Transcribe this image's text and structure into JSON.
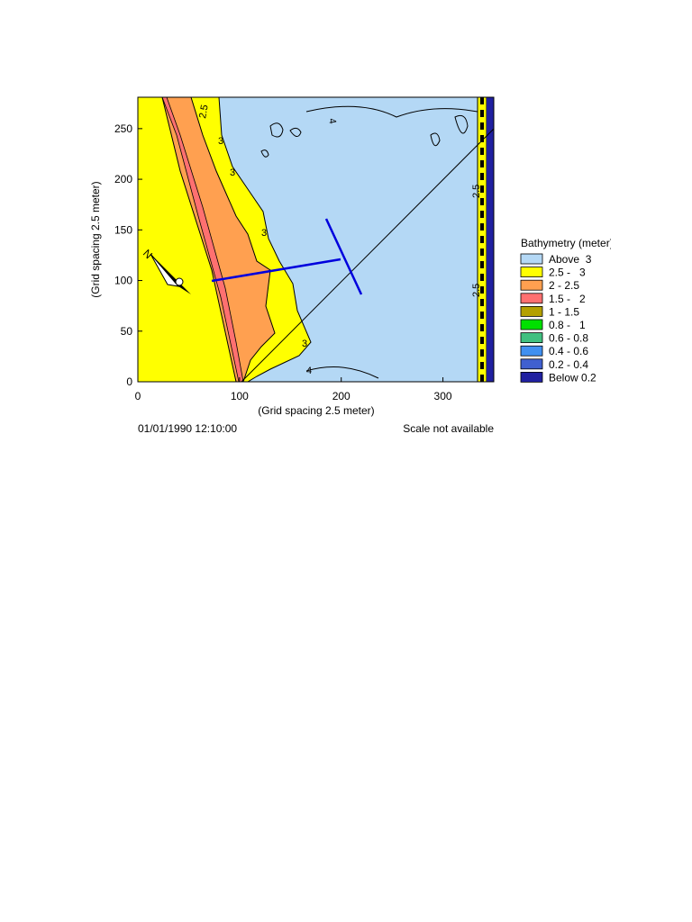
{
  "chart_data": {
    "type": "contour",
    "x_label": "(Grid spacing 2.5 meter)",
    "y_label": "(Grid spacing 2.5 meter)",
    "xlim": [
      0,
      350
    ],
    "ylim": [
      0,
      281
    ],
    "xticks": [
      0,
      100,
      200,
      300
    ],
    "yticks": [
      0,
      50,
      100,
      150,
      200,
      250
    ],
    "legend": {
      "title": "Bathymetry (meter)",
      "entries": [
        {
          "label": "Above  3",
          "color": "#b4d8f5"
        },
        {
          "label": "2.5 -   3",
          "color": "#ffff00"
        },
        {
          "label": "2 - 2.5",
          "color": "#ffa050"
        },
        {
          "label": "1.5 -   2",
          "color": "#ff7070"
        },
        {
          "label": "1 - 1.5",
          "color": "#b4a000"
        },
        {
          "label": "0.8 -   1",
          "color": "#00e000"
        },
        {
          "label": "0.6 - 0.8",
          "color": "#40c080"
        },
        {
          "label": "0.4 - 0.6",
          "color": "#4090f0"
        },
        {
          "label": "0.2 - 0.4",
          "color": "#4060d0"
        },
        {
          "label": "Below 0.2",
          "color": "#2020a0"
        }
      ]
    },
    "contour_labels": [
      "2.5",
      "3",
      "4"
    ],
    "footer": {
      "date": "01/01/1990 12:10:00",
      "scale": "Scale not available"
    }
  }
}
